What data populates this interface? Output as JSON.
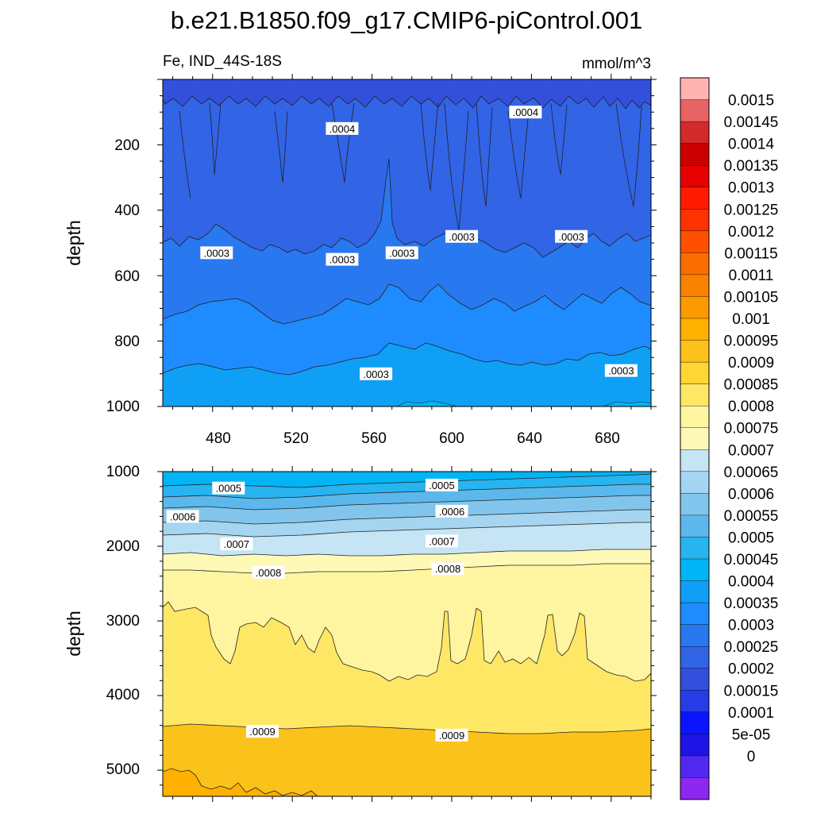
{
  "chart_data": {
    "type": "contour",
    "title": "b.e21.B1850.f09_g17.CMIP6-piControl.001",
    "variable": "Fe, IND_44S-18S",
    "units": "mmol/m^3",
    "panels": [
      {
        "name": "upper",
        "ylabel": "depth",
        "ylim": [
          1000,
          0
        ],
        "xlim": [
          455,
          700
        ],
        "xticks": [
          "480",
          "520",
          "560",
          "600",
          "640",
          "680"
        ],
        "yticks": [
          "200",
          "400",
          "600",
          "800",
          "1000"
        ],
        "contour_labels": [
          {
            "text": ".0003",
            "x": 562,
            "y": 100
          },
          {
            "text": ".0003",
            "x": 685,
            "y": 110
          },
          {
            "text": ".0003",
            "x": 482,
            "y": 470
          },
          {
            "text": ".0003",
            "x": 545,
            "y": 450
          },
          {
            "text": ".0003",
            "x": 575,
            "y": 470
          },
          {
            "text": ".0003",
            "x": 605,
            "y": 520
          },
          {
            "text": ".0003",
            "x": 660,
            "y": 520
          },
          {
            "text": ".0004",
            "x": 545,
            "y": 850
          },
          {
            "text": ".0004",
            "x": 637,
            "y": 900
          }
        ]
      },
      {
        "name": "lower",
        "ylabel": "depth",
        "ylim": [
          1000,
          5350
        ],
        "xlim": [
          455,
          700
        ],
        "yticks": [
          "1000",
          "2000",
          "3000",
          "4000",
          "5000"
        ],
        "contour_labels": [
          {
            "text": ".0005",
            "x": 488,
            "y": 1220
          },
          {
            "text": ".0005",
            "x": 595,
            "y": 1180
          },
          {
            "text": ".0006",
            "x": 465,
            "y": 1600
          },
          {
            "text": ".0006",
            "x": 600,
            "y": 1530
          },
          {
            "text": ".0007",
            "x": 492,
            "y": 1970
          },
          {
            "text": ".0007",
            "x": 595,
            "y": 1930
          },
          {
            "text": ".0008",
            "x": 508,
            "y": 2350
          },
          {
            "text": ".0008",
            "x": 598,
            "y": 2300
          },
          {
            "text": ".0009",
            "x": 505,
            "y": 4480
          },
          {
            "text": ".0009",
            "x": 600,
            "y": 4530
          }
        ]
      }
    ],
    "colorbar": {
      "labels": [
        "0.0015",
        "0.00145",
        "0.0014",
        "0.00135",
        "0.0013",
        "0.00125",
        "0.0012",
        "0.00115",
        "0.0011",
        "0.00105",
        "0.001",
        "0.00095",
        "0.0009",
        "0.00085",
        "0.0008",
        "0.00075",
        "0.0007",
        "0.00065",
        "0.0006",
        "0.00055",
        "0.0005",
        "0.00045",
        "0.0004",
        "0.00035",
        "0.0003",
        "0.00025",
        "0.0002",
        "0.00015",
        "0.0001",
        "5e-05",
        "0"
      ],
      "colors": [
        "#ffb3b3",
        "#e86464",
        "#d42a2a",
        "#cc0000",
        "#e60000",
        "#ff1a00",
        "#ff3300",
        "#ff5000",
        "#fa6e00",
        "#fa8200",
        "#ff9900",
        "#ffb000",
        "#fcc21c",
        "#ffd633",
        "#ffe766",
        "#fff5a0",
        "#fff9b8",
        "#c5e5f5",
        "#a5d5f0",
        "#82c5ec",
        "#5cb8ec",
        "#28b4f0",
        "#00b4f5",
        "#0fa0f5",
        "#1e8cff",
        "#2878f0",
        "#3264e6",
        "#3250dc",
        "#283ce6",
        "#0a14ff",
        "#1e14e6",
        "#5028f0",
        "#8c28f0"
      ]
    }
  }
}
